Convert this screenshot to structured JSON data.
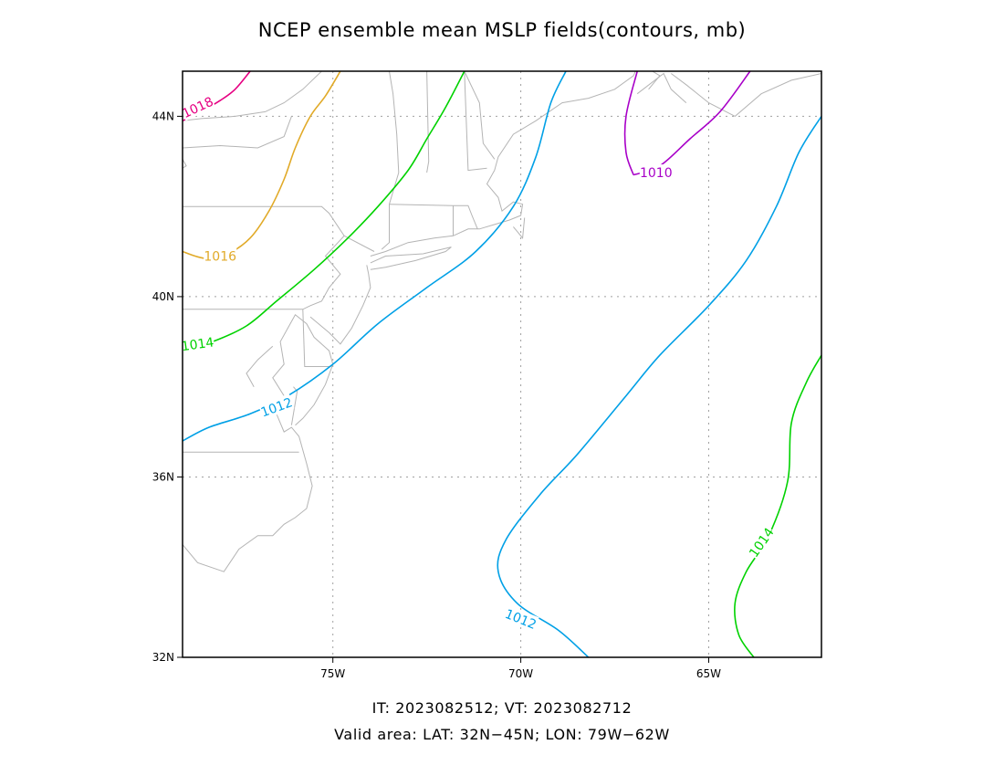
{
  "title": "NCEP ensemble mean MSLP fields(contours, mb)",
  "footer": {
    "line1": "IT: 2023082512; VT: 2023082712",
    "line2": "Valid area: LAT: 32N−45N; LON: 79W−62W"
  },
  "map": {
    "lon_range": [
      -79,
      -62
    ],
    "lat_range": [
      32,
      45
    ],
    "grid": true,
    "x_ticks": [
      {
        "value": -75,
        "label": "75W"
      },
      {
        "value": -70,
        "label": "70W"
      },
      {
        "value": -65,
        "label": "65W"
      }
    ],
    "y_ticks": [
      {
        "value": 32,
        "label": "32N"
      },
      {
        "value": 36,
        "label": "36N"
      },
      {
        "value": 40,
        "label": "40N"
      },
      {
        "value": 44,
        "label": "44N"
      }
    ],
    "colors": {
      "1010": "#a800c8",
      "1012": "#00a0e6",
      "1014": "#00d200",
      "1016": "#e1aa28",
      "1018": "#e60082",
      "coast": "#b4b4b4",
      "grid": "#a0a0a0"
    }
  },
  "contours": [
    {
      "value": 1018,
      "label": "1018",
      "color": "#e60082",
      "points": [
        [
          -79,
          43.9
        ],
        [
          -78.5,
          44.1
        ],
        [
          -78,
          44.35
        ],
        [
          -77.6,
          44.6
        ],
        [
          -77.2,
          45
        ]
      ],
      "label_at": [
        -78.6,
        44.2
      ],
      "label_angle": -25
    },
    {
      "value": 1016,
      "label": "1016",
      "color": "#e1aa28",
      "points": [
        [
          -79,
          41.0
        ],
        [
          -78.4,
          40.85
        ],
        [
          -77.8,
          40.95
        ],
        [
          -77.2,
          41.3
        ],
        [
          -76.7,
          41.9
        ],
        [
          -76.3,
          42.6
        ],
        [
          -76.0,
          43.3
        ],
        [
          -75.6,
          44.0
        ],
        [
          -75.2,
          44.45
        ],
        [
          -74.8,
          45
        ]
      ],
      "label_at": [
        -78.0,
        40.9
      ],
      "label_angle": 0
    },
    {
      "value": 1014,
      "label": "1014",
      "color": "#00d200",
      "points": [
        [
          -79,
          38.8
        ],
        [
          -78.2,
          39.0
        ],
        [
          -77.3,
          39.35
        ],
        [
          -76.5,
          39.9
        ],
        [
          -75.5,
          40.6
        ],
        [
          -74.6,
          41.3
        ],
        [
          -73.8,
          42.0
        ],
        [
          -73.0,
          42.8
        ],
        [
          -72.5,
          43.5
        ],
        [
          -72.0,
          44.2
        ],
        [
          -71.5,
          45
        ]
      ],
      "label_at": [
        -78.6,
        38.95
      ],
      "label_angle": -8
    },
    {
      "value": 1012,
      "label": "1012",
      "color": "#00a0e6",
      "points": [
        [
          -79,
          36.8
        ],
        [
          -78.3,
          37.1
        ],
        [
          -77.2,
          37.4
        ],
        [
          -76.2,
          37.8
        ],
        [
          -75.0,
          38.5
        ],
        [
          -73.8,
          39.4
        ],
        [
          -72.5,
          40.2
        ],
        [
          -71.2,
          41.0
        ],
        [
          -70.2,
          42.0
        ],
        [
          -69.6,
          43.1
        ],
        [
          -69.2,
          44.3
        ],
        [
          -68.8,
          45
        ]
      ],
      "label_at": [
        -76.5,
        37.55
      ],
      "label_angle": -20
    },
    {
      "value": 1012,
      "label": "1012",
      "color": "#00a0e6",
      "points": [
        [
          -68.2,
          32
        ],
        [
          -69.0,
          32.6
        ],
        [
          -70.1,
          33.2
        ],
        [
          -70.6,
          33.9
        ],
        [
          -70.4,
          34.6
        ],
        [
          -69.5,
          35.6
        ],
        [
          -68.5,
          36.5
        ],
        [
          -67.2,
          37.8
        ],
        [
          -66.3,
          38.7
        ],
        [
          -65.0,
          39.8
        ],
        [
          -64.0,
          40.8
        ],
        [
          -63.2,
          42.0
        ],
        [
          -62.6,
          43.2
        ],
        [
          -62,
          44.0
        ]
      ],
      "label_at": [
        -70.0,
        32.85
      ],
      "label_angle": 22
    },
    {
      "value": 1014,
      "label": "1014",
      "color": "#00d200",
      "points": [
        [
          -63.8,
          32
        ],
        [
          -64.2,
          32.5
        ],
        [
          -64.3,
          33.2
        ],
        [
          -64.0,
          33.9
        ],
        [
          -63.4,
          34.7
        ],
        [
          -62.9,
          35.9
        ],
        [
          -62.8,
          37.2
        ],
        [
          -62.4,
          38.1
        ],
        [
          -62,
          38.7
        ]
      ],
      "label_at": [
        -63.6,
        34.55
      ],
      "label_angle": -55
    },
    {
      "value": 1010,
      "label": "1010",
      "color": "#a800c8",
      "points": [
        [
          -67.0,
          42.7
        ],
        [
          -67.2,
          43.2
        ],
        [
          -67.2,
          44.0
        ],
        [
          -66.9,
          45
        ],
        [
          -67.0,
          42.7
        ],
        [
          -66.3,
          42.9
        ],
        [
          -65.5,
          43.5
        ],
        [
          -64.7,
          44.1
        ],
        [
          -63.9,
          45
        ]
      ],
      "label_at": [
        -66.4,
        42.75
      ],
      "label_angle": 0
    }
  ]
}
